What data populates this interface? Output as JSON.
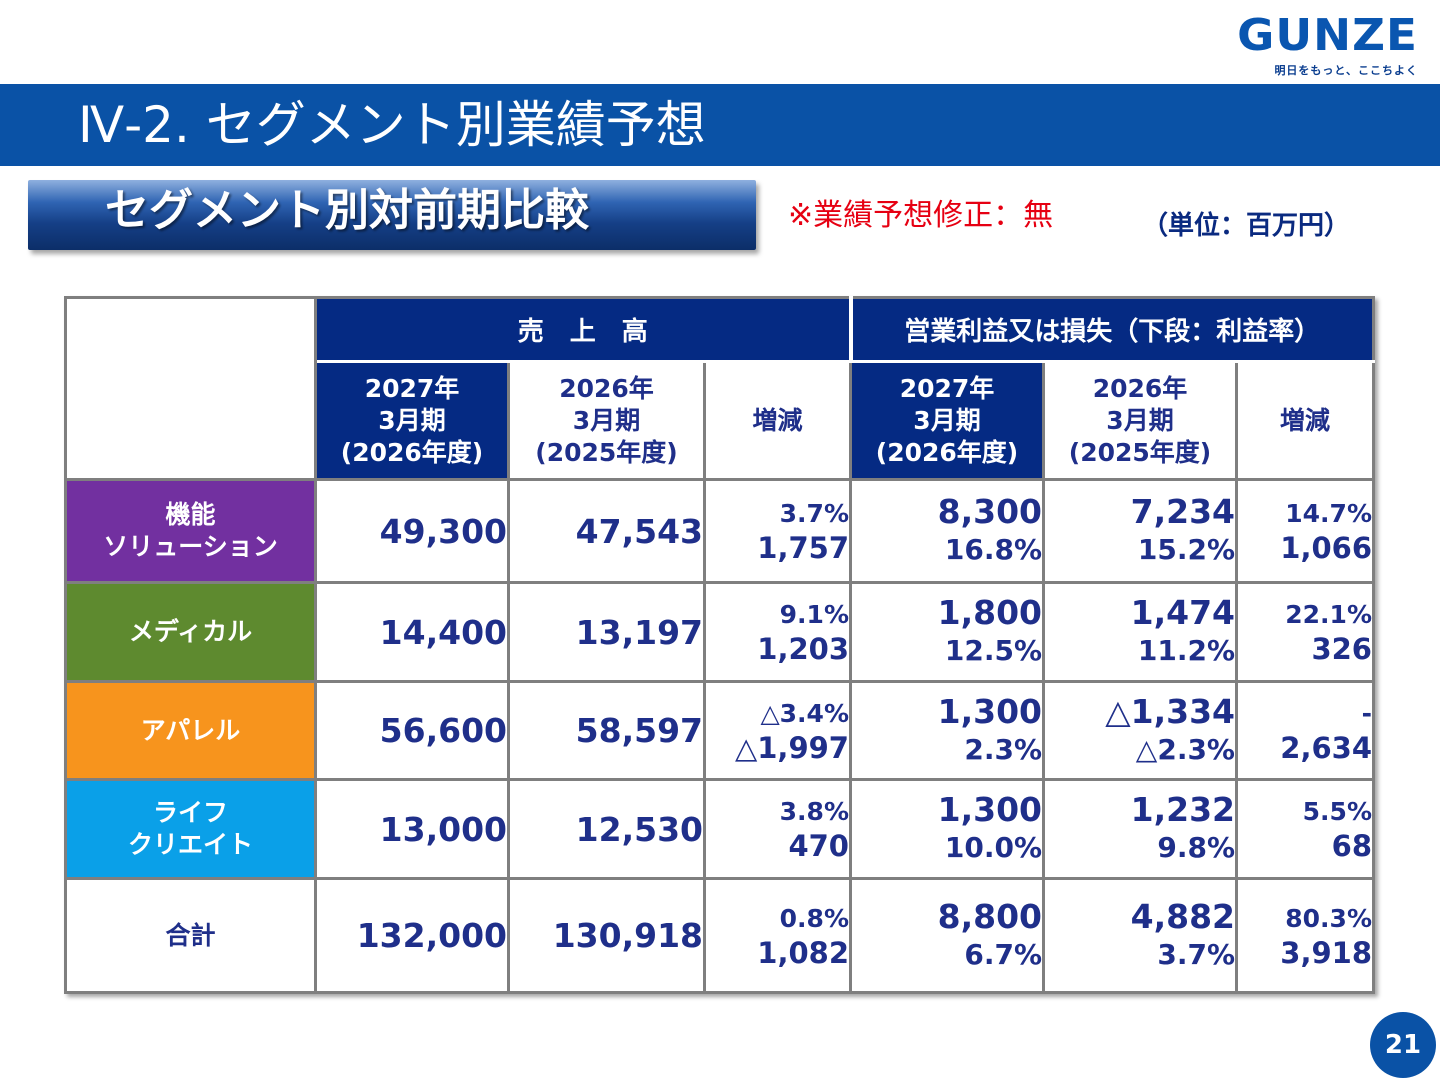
{
  "logo": {
    "word": "GUNZE",
    "tagline": "明日をもっと、ここちよく"
  },
  "title": "Ⅳ-2. セグメント別業績予想",
  "section_heading": "セグメント別対前期比較",
  "notice": "※業績予想修正：無",
  "unit": "（単位：百万円）",
  "table": {
    "group_headers": {
      "sales": "売　上　高",
      "operating": "営業利益又は損失（下段：利益率）"
    },
    "sub_headers": {
      "cur_line1": "2027年",
      "cur_line2": "3月期",
      "cur_line3": "(2026年度)",
      "prev_line1": "2026年",
      "prev_line2": "3月期",
      "prev_line3": "(2025年度)",
      "change": "増減"
    },
    "rows": [
      {
        "label_line1": "機能",
        "label_line2": "ソリューション",
        "color": "#7230a0",
        "sales_cur": "49,300",
        "sales_prev": "47,543",
        "sales_chg_pct": "3.7%",
        "sales_chg_amt": "1,757",
        "op_cur": "8,300",
        "op_cur_rate": "16.8%",
        "op_prev": "7,234",
        "op_prev_rate": "15.2%",
        "op_chg_pct": "14.7%",
        "op_chg_amt": "1,066"
      },
      {
        "label_line1": "メディカル",
        "label_line2": "",
        "color": "#5e8a2f",
        "sales_cur": "14,400",
        "sales_prev": "13,197",
        "sales_chg_pct": "9.1%",
        "sales_chg_amt": "1,203",
        "op_cur": "1,800",
        "op_cur_rate": "12.5%",
        "op_prev": "1,474",
        "op_prev_rate": "11.2%",
        "op_chg_pct": "22.1%",
        "op_chg_amt": "326"
      },
      {
        "label_line1": "アパレル",
        "label_line2": "",
        "color": "#f7941d",
        "sales_cur": "56,600",
        "sales_prev": "58,597",
        "sales_chg_pct": "△3.4%",
        "sales_chg_amt": "△1,997",
        "op_cur": "1,300",
        "op_cur_rate": "2.3%",
        "op_prev": "△1,334",
        "op_prev_rate": "△2.3%",
        "op_chg_pct": "-",
        "op_chg_amt": "2,634"
      },
      {
        "label_line1": "ライフ",
        "label_line2": "クリエイト",
        "color": "#0aa0e8",
        "sales_cur": "13,000",
        "sales_prev": "12,530",
        "sales_chg_pct": "3.8%",
        "sales_chg_amt": "470",
        "op_cur": "1,300",
        "op_cur_rate": "10.0%",
        "op_prev": "1,232",
        "op_prev_rate": "9.8%",
        "op_chg_pct": "5.5%",
        "op_chg_amt": "68"
      },
      {
        "label_line1": "合計",
        "label_line2": "",
        "color": "#ffffff",
        "sales_cur": "132,000",
        "sales_prev": "130,918",
        "sales_chg_pct": "0.8%",
        "sales_chg_amt": "1,082",
        "op_cur": "8,800",
        "op_cur_rate": "6.7%",
        "op_prev": "4,882",
        "op_prev_rate": "3.7%",
        "op_chg_pct": "80.3%",
        "op_chg_amt": "3,918"
      }
    ]
  },
  "page_number": "21"
}
